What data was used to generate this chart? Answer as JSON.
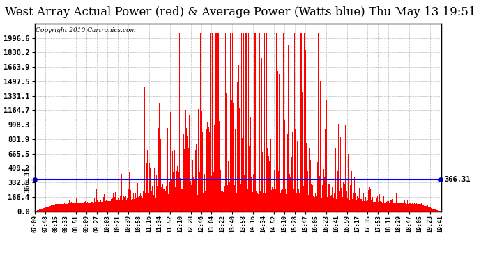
{
  "title": "West Array Actual Power (red) & Average Power (Watts blue) Thu May 13 19:51",
  "copyright": "Copyright 2010 Cartronics.com",
  "avg_value": 366.31,
  "ymax": 2163.0,
  "yticks": [
    0.0,
    166.4,
    332.8,
    499.2,
    665.5,
    831.9,
    998.3,
    1164.7,
    1331.1,
    1497.5,
    1663.9,
    1830.2,
    1996.6
  ],
  "ytick_labels": [
    "0.0",
    "166.4",
    "332.8",
    "499.2",
    "665.5",
    "831.9",
    "998.3",
    "1164.7",
    "1331.1",
    "1497.5",
    "1663.9",
    "1830.2",
    "1996.6"
  ],
  "background_color": "#ffffff",
  "plot_bg_color": "#ffffff",
  "bar_color": "#ff0000",
  "avg_line_color": "#0000ff",
  "grid_color": "#aaaaaa",
  "title_fontsize": 12,
  "tick_fontsize": 7.5,
  "copyright_fontsize": 6.5,
  "num_points": 756,
  "time_labels": [
    "07:09",
    "07:48",
    "08:15",
    "08:33",
    "08:51",
    "09:09",
    "09:27",
    "10:03",
    "10:21",
    "10:39",
    "10:58",
    "11:16",
    "11:34",
    "11:52",
    "12:10",
    "12:28",
    "12:46",
    "13:04",
    "13:22",
    "13:40",
    "13:58",
    "14:16",
    "14:34",
    "14:52",
    "15:10",
    "15:28",
    "15:47",
    "16:05",
    "16:23",
    "16:41",
    "16:59",
    "17:17",
    "17:35",
    "17:53",
    "18:11",
    "18:29",
    "18:47",
    "19:05",
    "19:23",
    "19:41"
  ]
}
